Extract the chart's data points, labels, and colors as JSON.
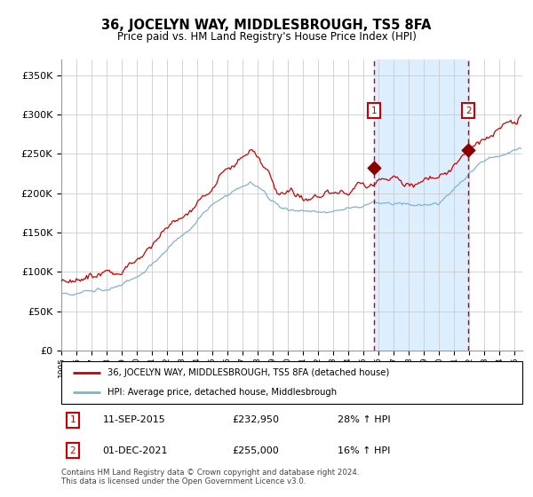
{
  "title": "36, JOCELYN WAY, MIDDLESBROUGH, TS5 8FA",
  "subtitle": "Price paid vs. HM Land Registry's House Price Index (HPI)",
  "legend_line1": "36, JOCELYN WAY, MIDDLESBROUGH, TS5 8FA (detached house)",
  "legend_line2": "HPI: Average price, detached house, Middlesbrough",
  "annotation1_date": "11-SEP-2015",
  "annotation1_price": "£232,950",
  "annotation1_hpi": "28% ↑ HPI",
  "annotation2_date": "01-DEC-2021",
  "annotation2_price": "£255,000",
  "annotation2_hpi": "16% ↑ HPI",
  "footer": "Contains HM Land Registry data © Crown copyright and database right 2024.\nThis data is licensed under the Open Government Licence v3.0.",
  "red_line_color": "#cc0000",
  "blue_line_color": "#7fb3d3",
  "marker_color": "#880000",
  "shaded_region_color": "#ddeeff",
  "grid_color": "#cccccc",
  "annotation_box_color": "#cc0000",
  "dashed_line_color": "#cc0000",
  "ylim": [
    0,
    370000
  ],
  "yticks": [
    0,
    50000,
    100000,
    150000,
    200000,
    250000,
    300000,
    350000
  ],
  "sale1_year": 2015.69,
  "sale2_year": 2021.92,
  "sale1_value": 232950,
  "sale2_value": 255000,
  "xstart": 1995.0,
  "xend": 2025.5
}
